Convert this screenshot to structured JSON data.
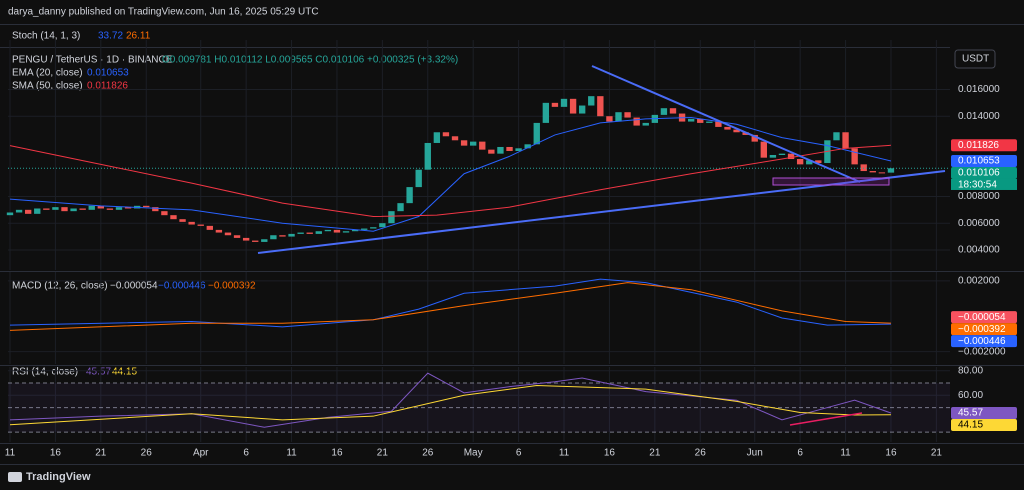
{
  "header": {
    "byline": "darya_danny published on TradingView.com, Jun 16, 2025 05:29 UTC",
    "footer": "TradingView"
  },
  "legend": {
    "stoch": "Stoch (14, 1, 3)",
    "stoch_k": "33.72",
    "stoch_d": "26.11",
    "symbol": "PENGU / TetherUS · 1D · BINANCE",
    "ohlc": "O0.009781 H0.010112 L0.009565 C0.010106 +0.000325 (+3.32%)",
    "ema": "EMA (20, close)",
    "ema_value": "0.010653",
    "sma": "SMA (50, close)",
    "sma_value": "0.011826",
    "macd": "MACD (12, 26, close)",
    "macd_hist": "−0.000054",
    "macd_line": "−0.000446",
    "macd_signal": "−0.000392",
    "rsi": "RSI (14, close)",
    "rsi_value": "45.57",
    "rsi_ma": "44.15",
    "currency": "USDT",
    "countdown": "18:30:54"
  },
  "chart_data": [
    {
      "type": "candlestick",
      "xlim": [
        -0.22,
        103.5
      ],
      "xticks": [
        {
          "value": 0,
          "label": "11"
        },
        {
          "value": 5,
          "label": "16"
        },
        {
          "value": 10,
          "label": "21"
        },
        {
          "value": 15,
          "label": "26"
        },
        {
          "value": 21,
          "label": "Apr"
        },
        {
          "value": 26,
          "label": "6"
        },
        {
          "value": 31,
          "label": "11"
        },
        {
          "value": 36,
          "label": "16"
        },
        {
          "value": 41,
          "label": "21"
        },
        {
          "value": 46,
          "label": "26"
        },
        {
          "value": 51,
          "label": "May"
        },
        {
          "value": 56,
          "label": "6"
        },
        {
          "value": 61,
          "label": "11"
        },
        {
          "value": 66,
          "label": "16"
        },
        {
          "value": 71,
          "label": "21"
        },
        {
          "value": 76,
          "label": "26"
        },
        {
          "value": 82,
          "label": "Jun"
        },
        {
          "value": 87,
          "label": "6"
        },
        {
          "value": 92,
          "label": "11"
        },
        {
          "value": 97,
          "label": "16"
        },
        {
          "value": 102,
          "label": "21"
        }
      ],
      "ylim": [
        0.0025,
        0.0197
      ],
      "yticks": [
        {
          "value": 0.016,
          "label": "0.016000"
        },
        {
          "value": 0.014,
          "label": "0.014000"
        },
        {
          "value": 0.008,
          "label": "0.008000"
        },
        {
          "value": 0.006,
          "label": "0.006000"
        },
        {
          "value": 0.004,
          "label": "0.004000"
        }
      ],
      "up_color": "#26a69a",
      "down_color": "#ef5350",
      "open": [
        0.0066,
        0.0068,
        0.007,
        0.0067,
        0.0071,
        0.007,
        0.0072,
        0.0069,
        0.0071,
        0.007,
        0.0073,
        0.0071,
        0.007,
        0.0072,
        0.0071,
        0.0073,
        0.0072,
        0.0069,
        0.0066,
        0.0063,
        0.0061,
        0.0059,
        0.0058,
        0.0055,
        0.0053,
        0.0051,
        0.0049,
        0.0047,
        0.0046,
        0.0048,
        0.0051,
        0.005,
        0.0052,
        0.0053,
        0.0052,
        0.0054,
        0.0055,
        0.0053,
        0.0054,
        0.0055,
        0.0056,
        0.0057,
        0.006,
        0.0069,
        0.0075,
        0.0087,
        0.01,
        0.012,
        0.0128,
        0.0125,
        0.0122,
        0.0118,
        0.0121,
        0.0115,
        0.0112,
        0.0117,
        0.0114,
        0.0116,
        0.0119,
        0.0135,
        0.015,
        0.0147,
        0.0153,
        0.0142,
        0.0148,
        0.0155,
        0.014,
        0.0136,
        0.0143,
        0.0139,
        0.0133,
        0.0135,
        0.0141,
        0.0146,
        0.0142,
        0.0136,
        0.0138,
        0.0135,
        0.0136,
        0.0132,
        0.013,
        0.0128,
        0.0126,
        0.0121,
        0.0109,
        0.0111,
        0.0112,
        0.0108,
        0.0104,
        0.0107,
        0.0105,
        0.0122,
        0.0128,
        0.0116,
        0.0104,
        0.0099,
        0.0098,
        0.009781
      ],
      "close": [
        0.0068,
        0.007,
        0.0067,
        0.0071,
        0.007,
        0.0072,
        0.0069,
        0.0071,
        0.007,
        0.0073,
        0.0071,
        0.007,
        0.0072,
        0.0071,
        0.0073,
        0.0072,
        0.0069,
        0.0066,
        0.0063,
        0.0061,
        0.0059,
        0.0058,
        0.0055,
        0.0053,
        0.0051,
        0.0049,
        0.0047,
        0.0046,
        0.0048,
        0.0051,
        0.005,
        0.0052,
        0.0053,
        0.0052,
        0.0054,
        0.0055,
        0.0053,
        0.0054,
        0.0055,
        0.0056,
        0.0057,
        0.006,
        0.0069,
        0.0075,
        0.0087,
        0.01,
        0.012,
        0.0128,
        0.0125,
        0.0122,
        0.0118,
        0.0121,
        0.0115,
        0.0112,
        0.0117,
        0.0114,
        0.0116,
        0.0119,
        0.0135,
        0.015,
        0.0147,
        0.0153,
        0.0142,
        0.0148,
        0.0155,
        0.014,
        0.0136,
        0.0143,
        0.0139,
        0.0133,
        0.0135,
        0.0141,
        0.0146,
        0.0142,
        0.0136,
        0.0138,
        0.0135,
        0.0136,
        0.0132,
        0.013,
        0.0128,
        0.0126,
        0.0121,
        0.0109,
        0.0111,
        0.0112,
        0.0108,
        0.0104,
        0.0107,
        0.0105,
        0.0122,
        0.0128,
        0.0116,
        0.0104,
        0.0099,
        0.0098,
        0.009781,
        0.010106
      ],
      "series": [
        {
          "name": "EMA (20, close)",
          "color": "#2962ff",
          "x": [
            0,
            10,
            20,
            30,
            40,
            45,
            50,
            55,
            60,
            65,
            70,
            75,
            80,
            85,
            90,
            97
          ],
          "values": [
            0.0078,
            0.0073,
            0.007,
            0.006,
            0.0054,
            0.0065,
            0.0097,
            0.011,
            0.0126,
            0.0135,
            0.0138,
            0.0139,
            0.0134,
            0.0124,
            0.0118,
            0.010653
          ]
        },
        {
          "name": "SMA (50, close)",
          "color": "#f23645",
          "x": [
            0,
            10,
            20,
            30,
            40,
            47,
            55,
            65,
            75,
            85,
            92,
            97
          ],
          "values": [
            0.0118,
            0.0104,
            0.009,
            0.0075,
            0.0065,
            0.0066,
            0.0072,
            0.0085,
            0.0097,
            0.0108,
            0.0116,
            0.011826
          ]
        }
      ],
      "last_labels": [
        {
          "value": 0.011826,
          "label": "0.011826",
          "color": "#f23645"
        },
        {
          "value": 0.010653,
          "label": "0.010653",
          "color": "#2962ff"
        },
        {
          "value": 0.010106,
          "label": "0.010106",
          "color": "#089981"
        }
      ]
    },
    {
      "type": "line",
      "ylim": [
        -0.0027,
        0.0025
      ],
      "yticks": [
        {
          "value": 0.002,
          "label": "0.002000"
        },
        {
          "value": -0.002,
          "label": "−0.002000"
        }
      ],
      "series": [
        {
          "name": "MACD",
          "color": "#2962ff",
          "x": [
            0,
            20,
            30,
            40,
            45,
            50,
            60,
            65,
            70,
            80,
            85,
            90,
            97
          ],
          "values": [
            -0.0005,
            -0.0003,
            -0.0006,
            -0.0002,
            0.0004,
            0.0013,
            0.0017,
            0.0021,
            0.0019,
            0.0008,
            -0.0001,
            -0.0005,
            -0.000446
          ]
        },
        {
          "name": "Signal",
          "color": "#ff6d00",
          "x": [
            0,
            20,
            30,
            40,
            50,
            60,
            68,
            75,
            85,
            92,
            97
          ],
          "values": [
            -0.0008,
            -0.0004,
            -0.0004,
            -0.0002,
            0.0006,
            0.0013,
            0.0019,
            0.0015,
            0.0003,
            -0.0003,
            -0.000392
          ]
        }
      ],
      "last_labels": [
        {
          "value": -5.4e-05,
          "label": "−0.000054",
          "color": "#f7525f"
        },
        {
          "value": -0.000392,
          "label": "−0.000392",
          "color": "#ff6d00"
        },
        {
          "value": -0.000446,
          "label": "−0.000446",
          "color": "#2962ff"
        }
      ]
    },
    {
      "type": "line",
      "ylim": [
        22,
        83
      ],
      "yticks": [
        {
          "value": 80,
          "label": "80.00"
        },
        {
          "value": 60,
          "label": "60.00"
        }
      ],
      "bands": [
        70,
        50,
        30
      ],
      "series": [
        {
          "name": "RSI",
          "color": "#7e57c2",
          "x": [
            0,
            10,
            20,
            28,
            35,
            42,
            46,
            50,
            55,
            60,
            63,
            70,
            80,
            85,
            90,
            93,
            97
          ],
          "values": [
            40,
            43,
            45,
            34,
            42,
            47,
            78,
            62,
            67,
            71,
            74,
            63,
            56,
            40,
            50,
            56,
            45.57
          ]
        },
        {
          "name": "RSI-based MA",
          "color": "#fdd835",
          "x": [
            0,
            20,
            30,
            40,
            50,
            58,
            70,
            80,
            87,
            93,
            97
          ],
          "values": [
            36,
            45,
            40,
            43,
            60,
            68,
            65,
            55,
            46,
            44,
            44.15
          ]
        }
      ],
      "last_labels": [
        {
          "value": 45.57,
          "label": "45.57",
          "color": "#7e57c2"
        },
        {
          "value": 44.15,
          "label": "44.15",
          "color": "#fdd835"
        }
      ]
    }
  ]
}
